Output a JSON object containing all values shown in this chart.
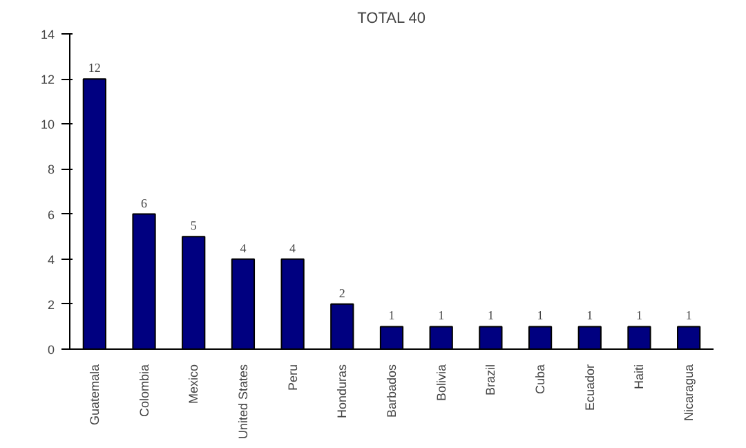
{
  "chart_data": {
    "type": "bar",
    "title": "TOTAL 40",
    "categories": [
      "Guatemala",
      "Colombia",
      "Mexico",
      "United States",
      "Peru",
      "Honduras",
      "Barbados",
      "Bolivia",
      "Brazil",
      "Cuba",
      "Ecuador",
      "Haiti",
      "Nicaragua"
    ],
    "values": [
      12,
      6,
      5,
      4,
      4,
      2,
      1,
      1,
      1,
      1,
      1,
      1,
      1
    ],
    "color": "#000080",
    "ylim": [
      0,
      14
    ],
    "yticks": [
      0,
      2,
      4,
      6,
      8,
      10,
      12,
      14
    ],
    "grid": false,
    "data_labels": true
  }
}
